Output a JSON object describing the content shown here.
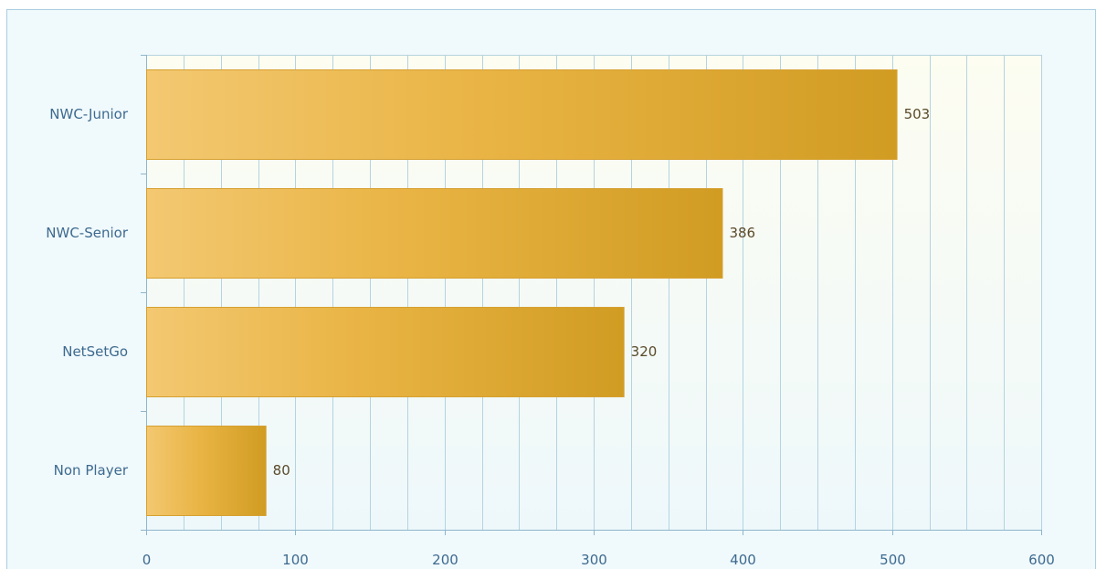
{
  "chart_data": {
    "type": "bar",
    "orientation": "horizontal",
    "categories": [
      "NWC-Junior",
      "NWC-Senior",
      "NetSetGo",
      "Non Player"
    ],
    "values": [
      503,
      386,
      320,
      80
    ],
    "data_labels": [
      "503",
      "386",
      "320",
      "80"
    ],
    "xlim": [
      0,
      600
    ],
    "x_ticks": [
      0,
      100,
      200,
      300,
      400,
      500,
      600
    ],
    "x_tick_labels": [
      "0",
      "100",
      "200",
      "300",
      "400",
      "500",
      "600"
    ],
    "minor_step": 25,
    "grid": true,
    "legend": "none",
    "title": "",
    "xlabel": "",
    "ylabel": ""
  },
  "colors": {
    "frame_border": "#a9cfe0",
    "outer_bg": "#f0f9fc",
    "plot_bg_top": "#fdfdf1",
    "plot_bg_bottom": "#eef8fb",
    "grid": "#b5d3e0",
    "axis": "#8fb6cc",
    "bar_light": "#f3c871",
    "bar_mid": "#e9b444",
    "bar_dark": "#d19c22",
    "bar_border": "#d6a030"
  }
}
